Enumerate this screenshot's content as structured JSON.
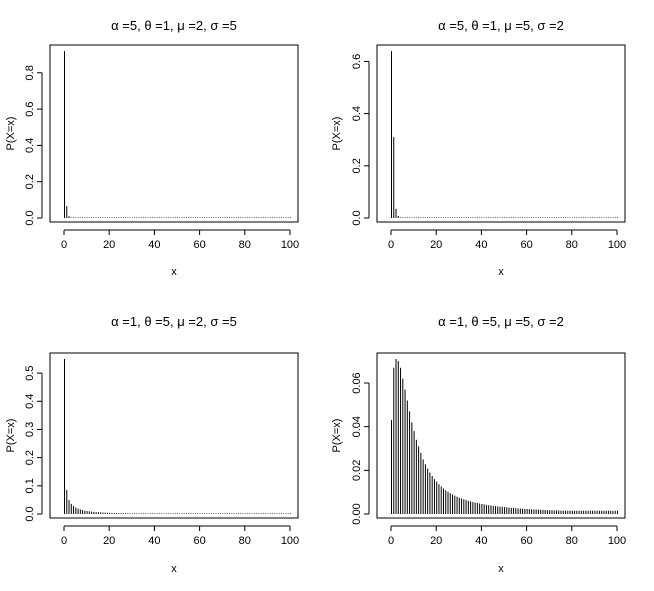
{
  "chart_data": [
    {
      "type": "bar",
      "title": "α =5, θ =1, μ =2, σ =5",
      "xlabel": "x",
      "ylabel": "P(X=x)",
      "xlim": [
        0,
        100
      ],
      "ylim": [
        0,
        0.92
      ],
      "xticks": [
        "0",
        "20",
        "40",
        "60",
        "80",
        "100"
      ],
      "yticks": [
        "0.0",
        "0.2",
        "0.4",
        "0.6",
        "0.8"
      ],
      "grid": false,
      "x": [
        0,
        1,
        2,
        3,
        4,
        5
      ],
      "values": [
        0.92,
        0.065,
        0.01,
        0.003,
        0.0015,
        0.0008
      ],
      "tail_value": 0.0003
    },
    {
      "type": "bar",
      "title": "α =5, θ =1, μ =5, σ =2",
      "xlabel": "x",
      "ylabel": "P(X=x)",
      "xlim": [
        0,
        100
      ],
      "ylim": [
        0,
        0.64
      ],
      "xticks": [
        "0",
        "20",
        "40",
        "60",
        "80",
        "100"
      ],
      "yticks": [
        "0.0",
        "0.2",
        "0.4",
        "0.6"
      ],
      "grid": false,
      "x": [
        0,
        1,
        2,
        3,
        4,
        5
      ],
      "values": [
        0.64,
        0.31,
        0.035,
        0.008,
        0.002,
        0.001
      ],
      "tail_value": 0.0002
    },
    {
      "type": "bar",
      "title": "α =1, θ =5, μ =2, σ =5",
      "xlabel": "x",
      "ylabel": "P(X=x)",
      "xlim": [
        0,
        100
      ],
      "ylim": [
        0,
        0.55
      ],
      "xticks": [
        "0",
        "20",
        "40",
        "60",
        "80",
        "100"
      ],
      "yticks": [
        "0.0",
        "0.1",
        "0.2",
        "0.3",
        "0.4",
        "0.5"
      ],
      "grid": false,
      "x": [
        0,
        1,
        2,
        3,
        4,
        5,
        6,
        7,
        8,
        9,
        10,
        11,
        12,
        13,
        14,
        15
      ],
      "values": [
        0.55,
        0.085,
        0.05,
        0.036,
        0.028,
        0.023,
        0.019,
        0.016,
        0.014,
        0.012,
        0.0105,
        0.0093,
        0.0083,
        0.0075,
        0.0068,
        0.0062
      ],
      "tail_model": "power",
      "tail_value": 0.0002
    },
    {
      "type": "bar",
      "title": "α =1, θ =5, μ =5, σ =2",
      "xlabel": "x",
      "ylabel": "P(X=x)",
      "xlim": [
        0,
        100
      ],
      "ylim": [
        0,
        0.071
      ],
      "xticks": [
        "0",
        "20",
        "40",
        "60",
        "80",
        "100"
      ],
      "yticks": [
        "0.00",
        "0.02",
        "0.04",
        "0.06"
      ],
      "grid": false,
      "x": [
        0,
        1,
        2,
        3,
        4,
        5,
        6,
        7,
        8,
        9,
        10,
        11,
        12,
        13,
        14,
        15,
        16,
        17,
        18,
        19,
        20
      ],
      "values": [
        0.043,
        0.067,
        0.071,
        0.07,
        0.067,
        0.062,
        0.057,
        0.052,
        0.047,
        0.042,
        0.038,
        0.034,
        0.031,
        0.028,
        0.025,
        0.0228,
        0.0208,
        0.019,
        0.0174,
        0.016,
        0.0148
      ],
      "tail_model": "decay",
      "tail_value": 0.0015
    }
  ]
}
